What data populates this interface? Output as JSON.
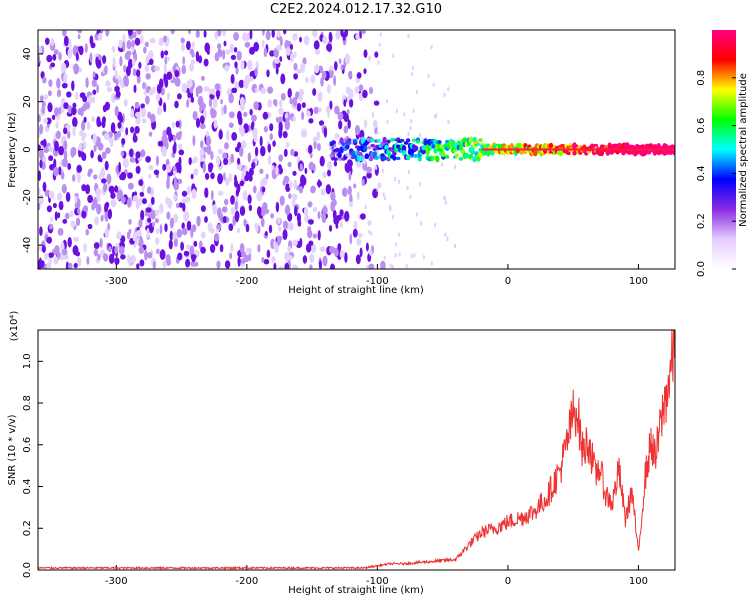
{
  "title": "C2E2.2024.012.17.32.G10",
  "chart_data": [
    {
      "type": "heatmap",
      "xlabel": "Height of straight line (km)",
      "ylabel": "Frequency (Hz)",
      "xlim": [
        -360,
        128
      ],
      "ylim": [
        -50,
        50
      ],
      "xticks": [
        -300,
        -200,
        -100,
        0,
        100
      ],
      "yticks": [
        -40,
        -20,
        0,
        20,
        40
      ],
      "colorbar": {
        "label": "Normalized spectral amplitude",
        "range": [
          0,
          1
        ],
        "ticks": [
          "0.0",
          "0.2",
          "0.4",
          "0.6",
          "0.8"
        ],
        "colors": [
          "#ffffff",
          "#e6ccff",
          "#8a2be2",
          "#0000ff",
          "#00ffff",
          "#00ff00",
          "#ffff00",
          "#ff0000",
          "#ff0080"
        ]
      },
      "features": {
        "noise_region_x": [
          -360,
          -110
        ],
        "signal_line_freq_hz": 0,
        "signal_start_x": -135
      }
    },
    {
      "type": "line",
      "xlabel": "Height of straight line (km)",
      "ylabel": "SNR (10 * v/v)",
      "y_multiplier": "(x10⁴)",
      "xlim": [
        -360,
        128
      ],
      "ylim": [
        0,
        1.15
      ],
      "xticks": [
        -300,
        -200,
        -100,
        0,
        100
      ],
      "yticks": [
        "0.0",
        "0.2",
        "0.4",
        "0.6",
        "0.8",
        "1.0"
      ],
      "color": "#ee3333",
      "series": [
        {
          "x": [
            -360,
            -300,
            -200,
            -110,
            -100,
            -90,
            -80,
            -60,
            -40,
            -30,
            -20,
            -10,
            0,
            10,
            20,
            30,
            40,
            45,
            50,
            53,
            57,
            62,
            67,
            70,
            75,
            80,
            85,
            90,
            95,
            100,
            105,
            110,
            113,
            116,
            120,
            125,
            128
          ],
          "y": [
            0.01,
            0.01,
            0.01,
            0.01,
            0.02,
            0.03,
            0.03,
            0.04,
            0.05,
            0.12,
            0.18,
            0.2,
            0.23,
            0.25,
            0.28,
            0.35,
            0.48,
            0.6,
            0.75,
            0.78,
            0.57,
            0.62,
            0.45,
            0.5,
            0.36,
            0.32,
            0.48,
            0.24,
            0.38,
            0.08,
            0.44,
            0.62,
            0.52,
            0.66,
            0.8,
            0.96,
            1.12
          ]
        }
      ]
    }
  ]
}
